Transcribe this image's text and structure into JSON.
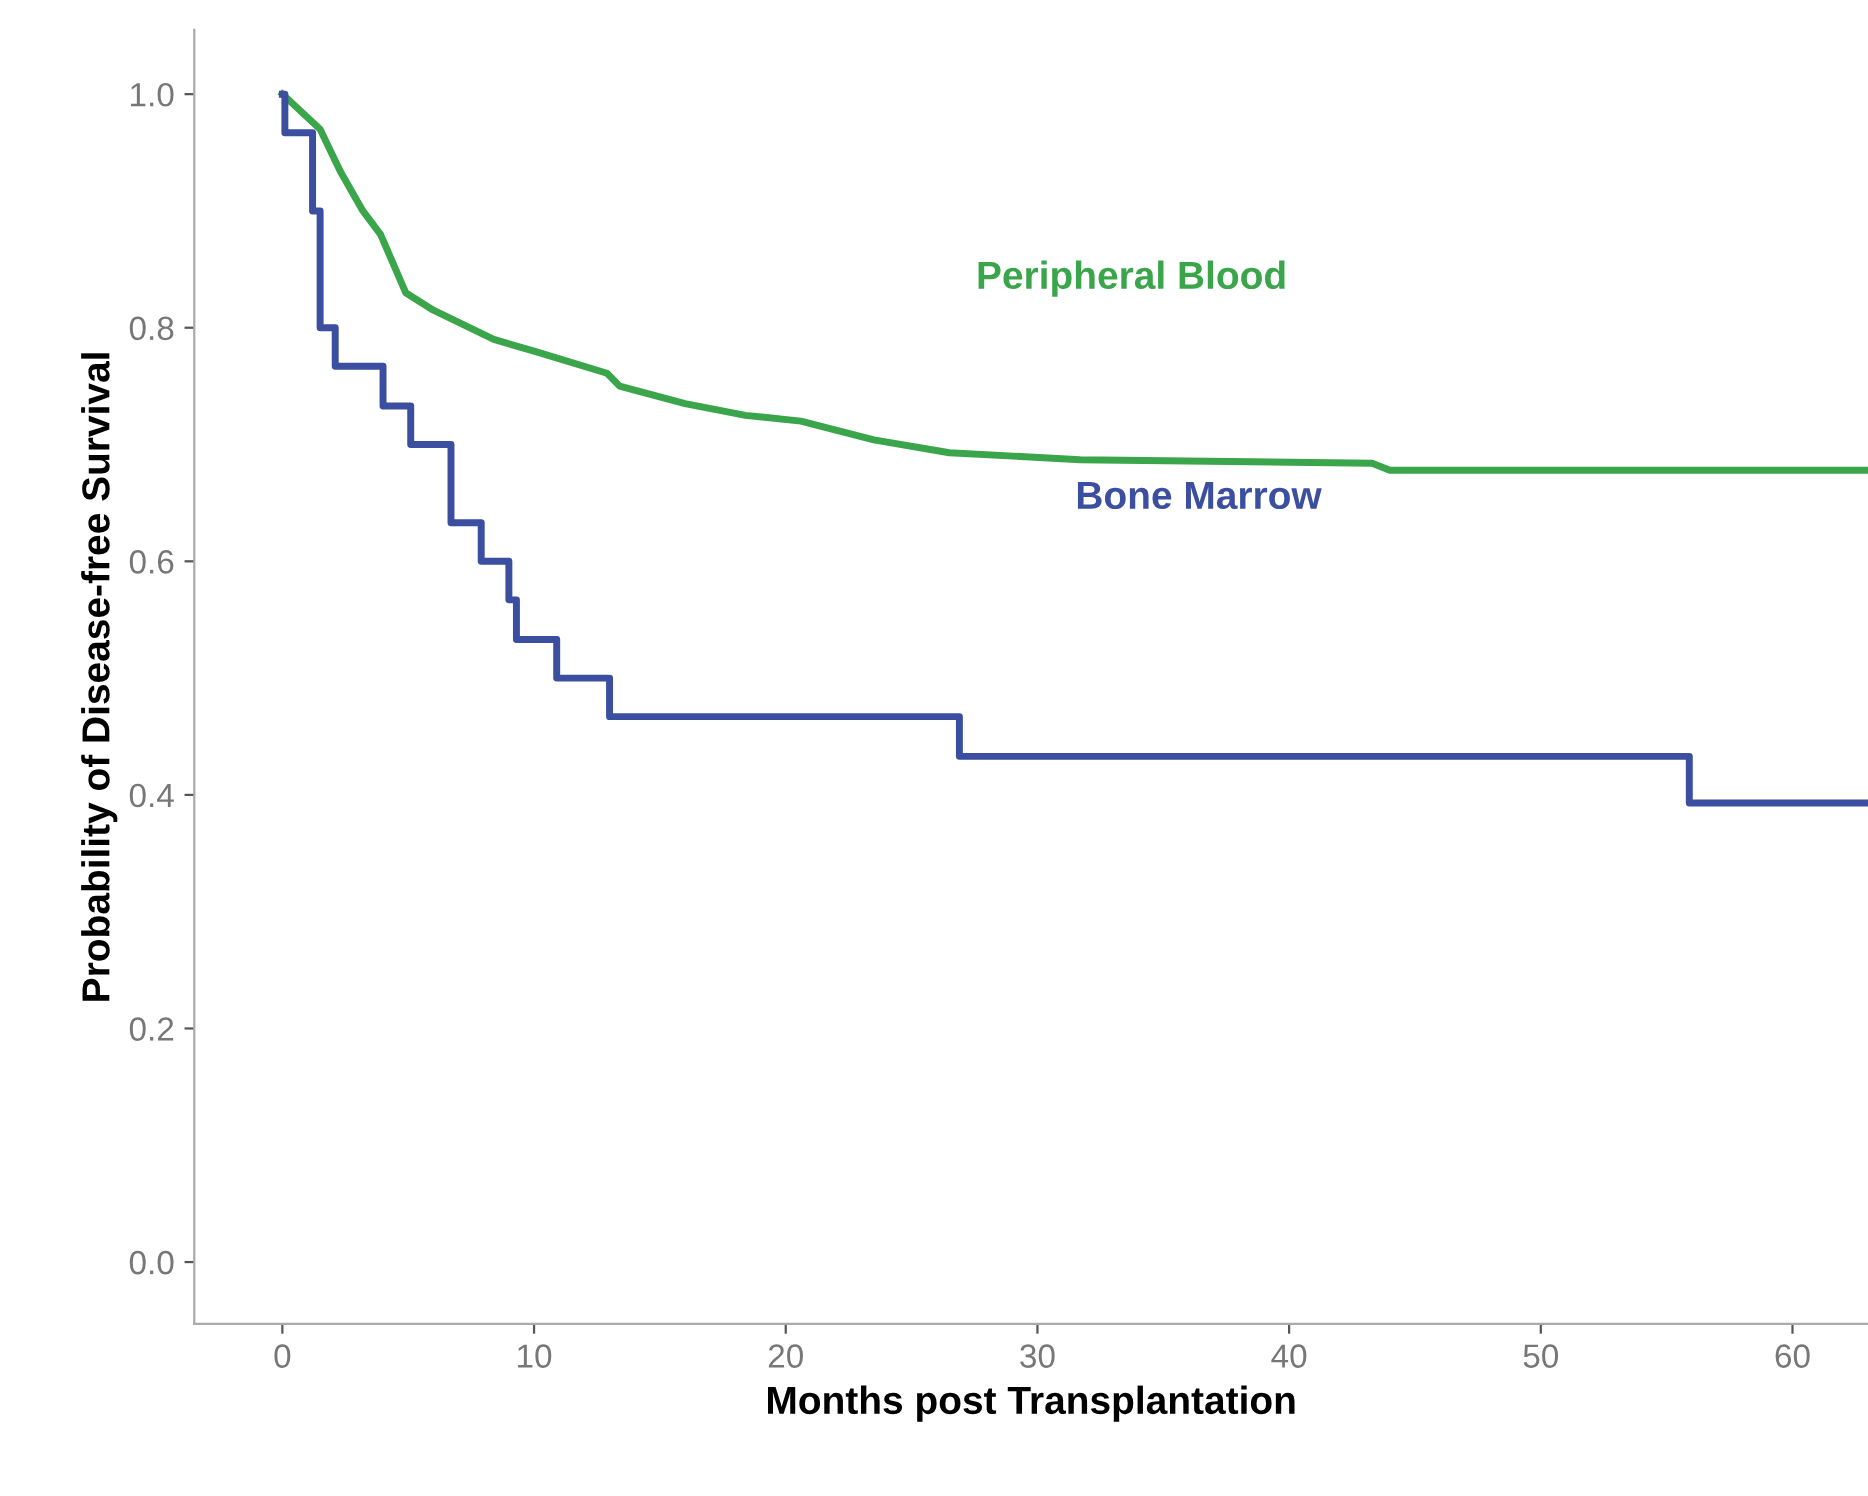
{
  "chart_data": {
    "type": "line",
    "xlabel": "Months post Transplantation",
    "ylabel": "Probability of Disease-free Survival",
    "xlim": [
      -3.5,
      63
    ],
    "xticks": [
      0,
      10,
      20,
      30,
      40,
      50,
      60
    ],
    "ylim": [
      -0.053,
      1.055
    ],
    "yticks": [
      {
        "value": 0,
        "label": "0.0"
      },
      {
        "value": 0.2,
        "label": "0.2"
      },
      {
        "value": 0.4,
        "label": "0.4"
      },
      {
        "value": 0.6,
        "label": "0.6"
      },
      {
        "value": 0.8,
        "label": "0.8"
      },
      {
        "value": 1,
        "label": "1.0"
      }
    ],
    "grid": false,
    "legend": false,
    "series": [
      {
        "name": "Peripheral Blood",
        "color": "#3aa54a",
        "x": [
          0,
          1,
          1.5,
          2.3,
          3.2,
          3.9,
          4.9,
          6,
          8.4,
          10,
          12.9,
          13.4,
          16,
          18.4,
          20.6,
          23.5,
          26.5,
          31.7,
          43.3,
          44,
          63
        ],
        "values": [
          1.0,
          0.98,
          0.97,
          0.934,
          0.9,
          0.88,
          0.83,
          0.815,
          0.79,
          0.78,
          0.761,
          0.75,
          0.735,
          0.725,
          0.72,
          0.704,
          0.693,
          0.687,
          0.684,
          0.678,
          0.678
        ]
      },
      {
        "name": "Bone Marrow",
        "type": "step",
        "color": "#3b4ea0",
        "x": [
          0,
          0.1,
          1.2,
          1.5,
          2.1,
          4.0,
          5.1,
          6.7,
          7.9,
          9.0,
          9.3,
          10.9,
          13.0,
          26.9,
          55.9,
          63
        ],
        "values": [
          1.0,
          0.967,
          0.9,
          0.8,
          0.767,
          0.733,
          0.7,
          0.633,
          0.6,
          0.567,
          0.533,
          0.5,
          0.467,
          0.433,
          0.393,
          0.393
        ]
      }
    ]
  }
}
